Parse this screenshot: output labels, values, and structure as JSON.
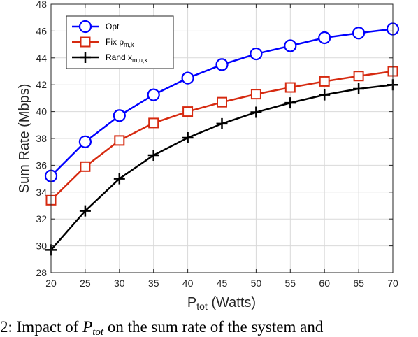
{
  "chart_data": {
    "type": "line",
    "title": "",
    "xlabel_main": "P",
    "xlabel_sub": "tot",
    "xlabel_rest": " (Watts)",
    "ylabel": "Sum Rate (Mbps)",
    "x": [
      20,
      25,
      30,
      35,
      40,
      45,
      50,
      55,
      60,
      65,
      70
    ],
    "xlim": [
      20,
      70
    ],
    "ylim": [
      28,
      48
    ],
    "xticks": [
      "20",
      "25",
      "30",
      "35",
      "40",
      "45",
      "50",
      "55",
      "60",
      "65",
      "70"
    ],
    "yticks": [
      "28",
      "30",
      "32",
      "34",
      "36",
      "38",
      "40",
      "42",
      "44",
      "46",
      "48"
    ],
    "grid": true,
    "legend_position": "top-left",
    "series": [
      {
        "name_main": "Opt",
        "name_sub": "",
        "color": "#0000ff",
        "marker": "circle",
        "values": [
          35.2,
          37.75,
          39.7,
          41.25,
          42.5,
          43.5,
          44.3,
          44.9,
          45.5,
          45.85,
          46.15
        ]
      },
      {
        "name_main": "Fix p",
        "name_sub": "m,k",
        "color": "#d62a10",
        "marker": "square",
        "values": [
          33.4,
          35.9,
          37.85,
          39.15,
          40.0,
          40.7,
          41.3,
          41.8,
          42.25,
          42.65,
          43.0
        ]
      },
      {
        "name_main": "Rand x",
        "name_sub": "m,u,k",
        "color": "#000000",
        "marker": "plus",
        "values": [
          29.7,
          32.6,
          35.0,
          36.75,
          38.05,
          39.1,
          39.95,
          40.65,
          41.25,
          41.7,
          42.0
        ]
      }
    ]
  },
  "caption": {
    "text_1": "2:  Impact  of  ",
    "var_main": "P",
    "var_sub": "tot",
    "text_2": "  on  the  sum  rate  of  the  system  and"
  }
}
